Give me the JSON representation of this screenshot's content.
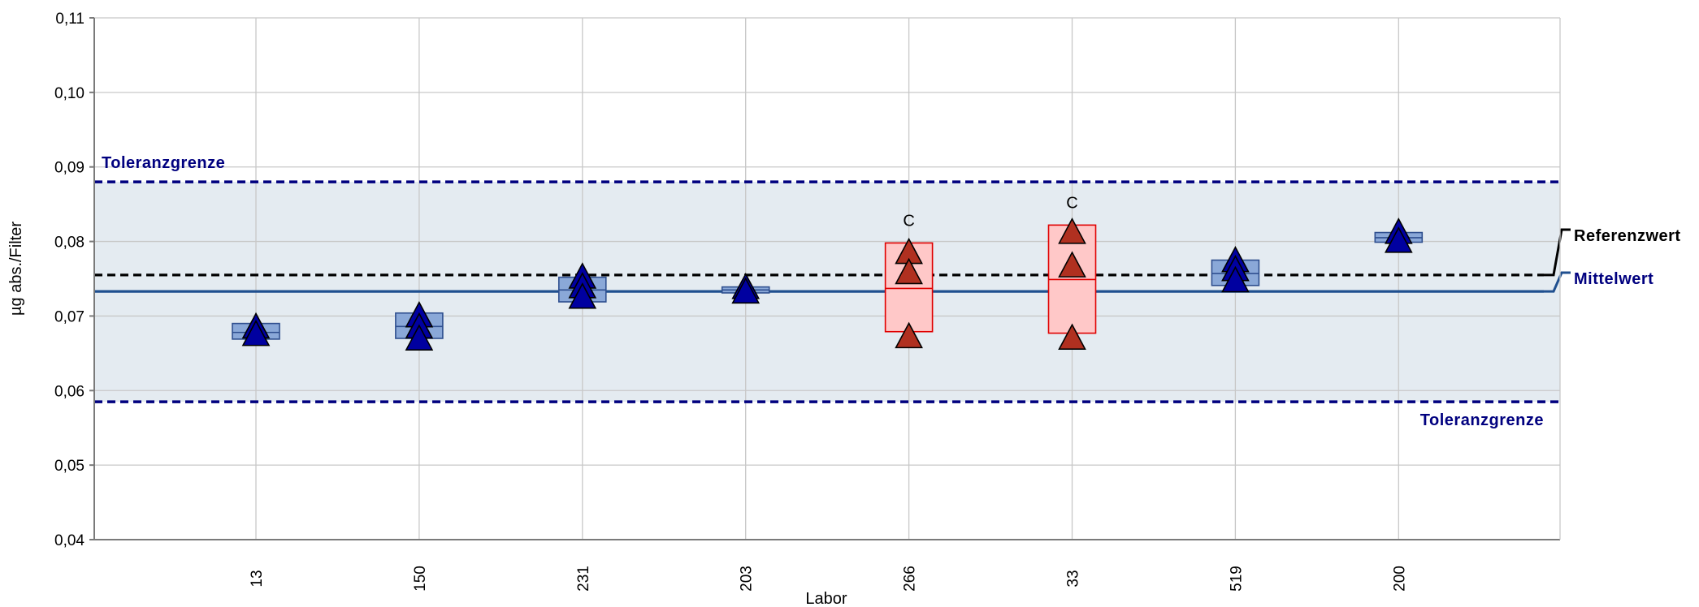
{
  "chart_data": {
    "type": "scatter",
    "xlabel": "Labor",
    "ylabel": "µg abs./Filter",
    "ylim": [
      0.04,
      0.11
    ],
    "yticks": [
      0.04,
      0.05,
      0.06,
      0.07,
      0.08,
      0.09,
      0.1,
      0.11
    ],
    "ytick_labels": [
      "0,04",
      "0,05",
      "0,06",
      "0,07",
      "0,08",
      "0,09",
      "0,10",
      "0,11"
    ],
    "categories": [
      "13",
      "150",
      "231",
      "203",
      "266",
      "33",
      "519",
      "200"
    ],
    "grid": true,
    "reference_value": 0.0755,
    "mean_value": 0.0733,
    "tolerance_upper": 0.088,
    "tolerance_lower": 0.0585,
    "labels": {
      "tolerance_upper": "Toleranzgrenze",
      "tolerance_lower": "Toleranzgrenze",
      "reference": "Referenzwert",
      "mean": "Mittelwert"
    },
    "colors": {
      "ok_box_fill": "#8aa8d8",
      "ok_box_stroke": "#2f4f8f",
      "ok_marker": "#0000a0",
      "flag_box_fill": "#ffc8c8",
      "flag_box_stroke": "#e00000",
      "flag_marker": "#b03020",
      "tolerance_band": "#e4ebf1",
      "tolerance_line": "#00007f",
      "mean_line": "#1f4f8f",
      "reference_line": "#000000"
    },
    "labs": [
      {
        "lab": "13",
        "values": [
          0.0683,
          0.0673
        ],
        "box": [
          0.0669,
          0.069
        ],
        "median": 0.0678,
        "flag": ""
      },
      {
        "lab": "150",
        "values": [
          0.0698,
          0.0683,
          0.0667
        ],
        "box": [
          0.067,
          0.0704
        ],
        "median": 0.0686,
        "flag": ""
      },
      {
        "lab": "231",
        "values": [
          0.075,
          0.0737,
          0.0723
        ],
        "box": [
          0.0719,
          0.0752
        ],
        "median": 0.0735,
        "flag": ""
      },
      {
        "lab": "203",
        "values": [
          0.0736,
          0.073
        ],
        "box": [
          0.0731,
          0.0739
        ],
        "median": 0.0735,
        "flag": ""
      },
      {
        "lab": "266",
        "values": [
          0.0783,
          0.0756,
          0.067
        ],
        "box": [
          0.0679,
          0.0798
        ],
        "median": 0.0737,
        "flag": "C"
      },
      {
        "lab": "33",
        "values": [
          0.081,
          0.0765,
          0.0668
        ],
        "box": [
          0.0677,
          0.0822
        ],
        "median": 0.0749,
        "flag": "C"
      },
      {
        "lab": "519",
        "values": [
          0.0772,
          0.076,
          0.0745
        ],
        "box": [
          0.0741,
          0.0775
        ],
        "median": 0.0757,
        "flag": ""
      },
      {
        "lab": "200",
        "values": [
          0.081,
          0.0798
        ],
        "box": [
          0.0799,
          0.0812
        ],
        "median": 0.0805,
        "flag": ""
      }
    ]
  }
}
